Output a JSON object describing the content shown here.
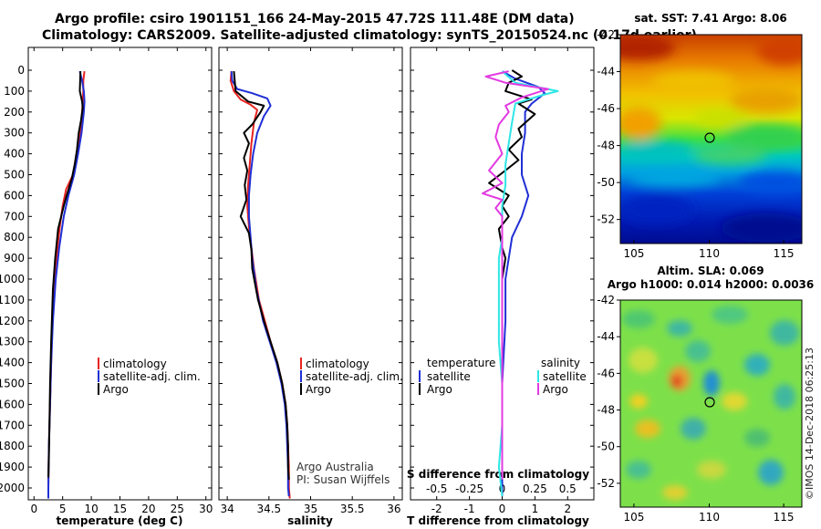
{
  "header": {
    "line1": "Argo profile: csiro 1901151_166 24-May-2015 47.72S 111.48E (DM data)",
    "line2": "Climatology: CARS2009. Satellite-adjusted climatology: synTS_20150524.nc (0.17d earlier)"
  },
  "colors": {
    "climatology": "#e8231f",
    "satellite": "#1f2fd6",
    "argo": "#000000",
    "salinity_satellite": "#2fe6e6",
    "salinity_argo": "#e23ae2"
  },
  "map_sst": {
    "title": "sat. SST: 7.41 Argo: 8.06",
    "yticks": [
      "-42",
      "-44",
      "-46",
      "-48",
      "-50",
      "-52"
    ],
    "xticks": [
      "105",
      "110",
      "115"
    ],
    "colormap": "jet"
  },
  "map_sla": {
    "title1": "Altim. SLA: 0.069",
    "title2": "Argo h1000: 0.014 h2000: 0.0036",
    "yticks": [
      "-42",
      "-44",
      "-46",
      "-48",
      "-50",
      "-52"
    ],
    "xticks": [
      "105",
      "110",
      "115"
    ],
    "colormap": "jet"
  },
  "credit": "©IMOS 14-Dec-2018 06:25:13",
  "chart_data": [
    {
      "type": "line",
      "id": "temperature",
      "xlabel": "temperature (deg C)",
      "ylabel": "",
      "xlim": [
        -1,
        31
      ],
      "ylim": [
        0,
        2080
      ],
      "y_inverted": true,
      "xticks": [
        0,
        5,
        10,
        15,
        20,
        25,
        30
      ],
      "yticks": [
        0,
        100,
        200,
        300,
        400,
        500,
        600,
        700,
        800,
        900,
        1000,
        1100,
        1200,
        1300,
        1400,
        1500,
        1600,
        1700,
        1800,
        1900,
        2000
      ],
      "legend": [
        "climatology",
        "satellite-adj. clim.",
        "Argo"
      ],
      "series": [
        {
          "name": "climatology",
          "color_key": "climatology",
          "points": [
            [
              8.8,
              5
            ],
            [
              8.6,
              50
            ],
            [
              8.6,
              100
            ],
            [
              8.5,
              150
            ],
            [
              8.4,
              200
            ],
            [
              8.1,
              300
            ],
            [
              7.6,
              400
            ],
            [
              6.8,
              500
            ],
            [
              5.6,
              570
            ],
            [
              5.0,
              650
            ],
            [
              4.5,
              750
            ],
            [
              3.9,
              900
            ],
            [
              3.5,
              1000
            ],
            [
              3.2,
              1200
            ],
            [
              3.0,
              1400
            ],
            [
              2.8,
              1600
            ],
            [
              2.6,
              1800
            ],
            [
              2.5,
              2000
            ],
            [
              2.5,
              2050
            ]
          ]
        },
        {
          "name": "satellite-adj. clim.",
          "color_key": "satellite",
          "points": [
            [
              8.0,
              5
            ],
            [
              8.4,
              50
            ],
            [
              8.7,
              100
            ],
            [
              8.8,
              150
            ],
            [
              8.7,
              200
            ],
            [
              8.3,
              300
            ],
            [
              7.7,
              400
            ],
            [
              7.0,
              500
            ],
            [
              6.0,
              600
            ],
            [
              5.2,
              700
            ],
            [
              4.4,
              850
            ],
            [
              3.8,
              1000
            ],
            [
              3.3,
              1200
            ],
            [
              3.0,
              1400
            ],
            [
              2.8,
              1600
            ],
            [
              2.6,
              1800
            ],
            [
              2.5,
              2000
            ],
            [
              2.5,
              2050
            ]
          ]
        },
        {
          "name": "Argo",
          "color_key": "argo",
          "points": [
            [
              8.1,
              5
            ],
            [
              8.0,
              100
            ],
            [
              8.4,
              150
            ],
            [
              8.5,
              180
            ],
            [
              8.2,
              240
            ],
            [
              7.8,
              300
            ],
            [
              7.5,
              380
            ],
            [
              7.1,
              450
            ],
            [
              6.6,
              520
            ],
            [
              5.7,
              600
            ],
            [
              5.2,
              650
            ],
            [
              4.2,
              760
            ],
            [
              3.7,
              900
            ],
            [
              3.3,
              1050
            ],
            [
              3.0,
              1300
            ],
            [
              2.8,
              1500
            ],
            [
              2.7,
              1700
            ],
            [
              2.6,
              1850
            ],
            [
              2.5,
              1950
            ]
          ]
        }
      ]
    },
    {
      "type": "line",
      "id": "salinity",
      "xlabel": "salinity",
      "ylabel": "",
      "xlim": [
        33.9,
        36.1
      ],
      "ylim": [
        0,
        2080
      ],
      "y_inverted": true,
      "xticks": [
        34,
        34.5,
        35,
        35.5,
        36
      ],
      "legend": [
        "climatology",
        "satellite-adj. clim.",
        "Argo"
      ],
      "annotation": [
        "Argo Australia",
        "PI: Susan Wijffels"
      ],
      "series": [
        {
          "name": "climatology",
          "color_key": "climatology",
          "points": [
            [
              34.05,
              5
            ],
            [
              34.04,
              50
            ],
            [
              34.08,
              100
            ],
            [
              34.16,
              140
            ],
            [
              34.28,
              165
            ],
            [
              34.36,
              190
            ],
            [
              34.32,
              250
            ],
            [
              34.29,
              350
            ],
            [
              34.27,
              450
            ],
            [
              34.25,
              550
            ],
            [
              34.24,
              650
            ],
            [
              34.26,
              750
            ],
            [
              34.29,
              850
            ],
            [
              34.32,
              950
            ],
            [
              34.38,
              1100
            ],
            [
              34.45,
              1200
            ],
            [
              34.52,
              1300
            ],
            [
              34.6,
              1400
            ],
            [
              34.66,
              1500
            ],
            [
              34.7,
              1600
            ],
            [
              34.72,
              1700
            ],
            [
              34.73,
              1800
            ],
            [
              34.74,
              1900
            ],
            [
              34.74,
              2000
            ],
            [
              34.75,
              2050
            ]
          ]
        },
        {
          "name": "satellite-adj. clim.",
          "color_key": "satellite",
          "points": [
            [
              34.05,
              5
            ],
            [
              34.06,
              50
            ],
            [
              34.12,
              90
            ],
            [
              34.3,
              110
            ],
            [
              34.48,
              135
            ],
            [
              34.52,
              170
            ],
            [
              34.44,
              220
            ],
            [
              34.36,
              300
            ],
            [
              34.31,
              400
            ],
            [
              34.28,
              500
            ],
            [
              34.26,
              600
            ],
            [
              34.26,
              700
            ],
            [
              34.28,
              800
            ],
            [
              34.3,
              900
            ],
            [
              34.35,
              1050
            ],
            [
              34.43,
              1200
            ],
            [
              34.51,
              1300
            ],
            [
              34.59,
              1400
            ],
            [
              34.65,
              1500
            ],
            [
              34.69,
              1600
            ],
            [
              34.71,
              1700
            ],
            [
              34.72,
              1800
            ],
            [
              34.73,
              1900
            ],
            [
              34.73,
              2000
            ],
            [
              34.74,
              2040
            ]
          ]
        },
        {
          "name": "Argo",
          "color_key": "argo",
          "points": [
            [
              34.08,
              5
            ],
            [
              34.1,
              100
            ],
            [
              34.25,
              150
            ],
            [
              34.44,
              170
            ],
            [
              34.4,
              200
            ],
            [
              34.3,
              260
            ],
            [
              34.2,
              300
            ],
            [
              34.26,
              350
            ],
            [
              34.2,
              420
            ],
            [
              34.24,
              480
            ],
            [
              34.21,
              550
            ],
            [
              34.23,
              620
            ],
            [
              34.16,
              700
            ],
            [
              34.26,
              780
            ],
            [
              34.29,
              860
            ],
            [
              34.3,
              950
            ],
            [
              34.37,
              1100
            ],
            [
              34.44,
              1200
            ],
            [
              34.52,
              1300
            ],
            [
              34.6,
              1400
            ],
            [
              34.66,
              1500
            ],
            [
              34.7,
              1600
            ],
            [
              34.72,
              1700
            ],
            [
              34.73,
              1800
            ],
            [
              34.73,
              1900
            ],
            [
              34.74,
              1960
            ]
          ]
        }
      ]
    },
    {
      "type": "line",
      "id": "difference",
      "xlabel": "T difference from climatology",
      "xlabel_top": "S difference from climatology",
      "ylabel": "",
      "xlim": [
        -2.8,
        2.8
      ],
      "ylim": [
        0,
        2080
      ],
      "y_inverted": true,
      "xticks": [
        "-2",
        "-1",
        "0",
        "1",
        "2"
      ],
      "xticks_top": [
        "-0.5",
        "-0.25",
        "0",
        "0.25",
        "0.5"
      ],
      "legend_left": {
        "title": "temperature",
        "items": [
          "satellite",
          "Argo"
        ]
      },
      "legend_right": {
        "title": "salinity",
        "items": [
          "satellite",
          "Argo"
        ]
      },
      "series": [
        {
          "name": "satellite",
          "group": "temperature",
          "color_key": "satellite",
          "points": [
            [
              0.0,
              5
            ],
            [
              0.4,
              40
            ],
            [
              1.1,
              80
            ],
            [
              1.3,
              110
            ],
            [
              0.9,
              160
            ],
            [
              0.7,
              200
            ],
            [
              0.7,
              300
            ],
            [
              0.6,
              400
            ],
            [
              0.6,
              500
            ],
            [
              0.7,
              550
            ],
            [
              0.8,
              600
            ],
            [
              0.6,
              700
            ],
            [
              0.3,
              800
            ],
            [
              0.2,
              900
            ],
            [
              0.1,
              1000
            ],
            [
              0.1,
              1200
            ],
            [
              0.0,
              1500
            ],
            [
              0.0,
              2040
            ]
          ]
        },
        {
          "name": "Argo",
          "group": "temperature",
          "color_key": "argo",
          "points": [
            [
              0.3,
              0
            ],
            [
              0.6,
              30
            ],
            [
              0.2,
              60
            ],
            [
              0.1,
              100
            ],
            [
              0.9,
              140
            ],
            [
              0.5,
              160
            ],
            [
              1.0,
              210
            ],
            [
              0.5,
              280
            ],
            [
              0.6,
              320
            ],
            [
              0.2,
              380
            ],
            [
              0.5,
              430
            ],
            [
              0.1,
              480
            ],
            [
              -0.4,
              540
            ],
            [
              0.2,
              600
            ],
            [
              0.0,
              650
            ],
            [
              0.2,
              700
            ],
            [
              -0.1,
              760
            ],
            [
              0.0,
              850
            ],
            [
              0.1,
              900
            ],
            [
              0.0,
              1000
            ],
            [
              0.0,
              1200
            ],
            [
              0.0,
              1500
            ],
            [
              0.0,
              1960
            ]
          ]
        },
        {
          "name": "satellite",
          "group": "salinity",
          "color_key": "salinity_satellite",
          "points": [
            [
              0.0,
              5
            ],
            [
              0.4,
              60
            ],
            [
              1.7,
              100
            ],
            [
              1.2,
              120
            ],
            [
              0.4,
              160
            ],
            [
              0.3,
              250
            ],
            [
              0.2,
              350
            ],
            [
              0.1,
              450
            ],
            [
              0.1,
              550
            ],
            [
              0.0,
              650
            ],
            [
              0.0,
              800
            ],
            [
              -0.1,
              900
            ],
            [
              -0.1,
              1100
            ],
            [
              -0.1,
              1300
            ],
            [
              0.0,
              1500
            ],
            [
              0.0,
              1700
            ],
            [
              -0.1,
              1900
            ],
            [
              0.0,
              2040
            ]
          ]
        },
        {
          "name": "Argo",
          "group": "salinity",
          "color_key": "salinity_argo",
          "points": [
            [
              0.2,
              5
            ],
            [
              -0.5,
              30
            ],
            [
              0.1,
              60
            ],
            [
              1.4,
              90
            ],
            [
              0.6,
              130
            ],
            [
              0.1,
              170
            ],
            [
              0.2,
              200
            ],
            [
              -0.1,
              260
            ],
            [
              -0.2,
              320
            ],
            [
              0.0,
              400
            ],
            [
              -0.4,
              480
            ],
            [
              0.0,
              540
            ],
            [
              -0.6,
              590
            ],
            [
              0.0,
              620
            ],
            [
              -0.2,
              660
            ],
            [
              0.0,
              700
            ],
            [
              0.0,
              800
            ],
            [
              0.0,
              1000
            ],
            [
              0.0,
              1300
            ],
            [
              0.0,
              1600
            ],
            [
              0.0,
              1960
            ]
          ]
        }
      ]
    }
  ]
}
